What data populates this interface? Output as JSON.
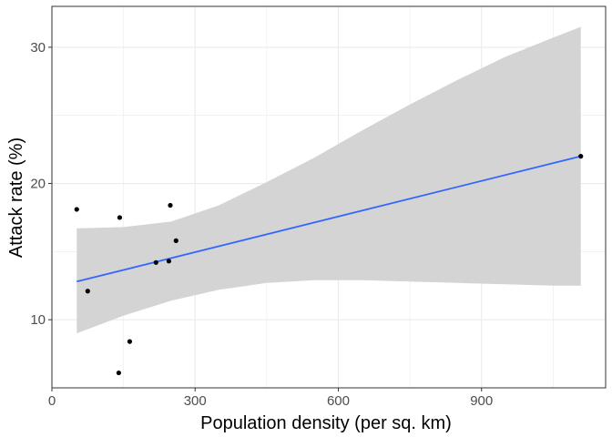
{
  "chart_data": {
    "type": "scatter",
    "xlabel": "Population density (per sq. km)",
    "ylabel": "Attack rate (%)",
    "xlim": [
      0,
      1160
    ],
    "ylim": [
      5,
      33
    ],
    "x_ticks": [
      0,
      300,
      600,
      900
    ],
    "y_ticks": [
      10,
      20,
      30
    ],
    "grid": true,
    "points": [
      {
        "x": 52,
        "y": 18.1
      },
      {
        "x": 75,
        "y": 12.1
      },
      {
        "x": 140,
        "y": 6.1
      },
      {
        "x": 142,
        "y": 17.5
      },
      {
        "x": 163,
        "y": 8.4
      },
      {
        "x": 218,
        "y": 14.2
      },
      {
        "x": 245,
        "y": 14.3
      },
      {
        "x": 248,
        "y": 18.4
      },
      {
        "x": 260,
        "y": 15.8
      },
      {
        "x": 1108,
        "y": 22.0
      }
    ],
    "fit_line": {
      "x": [
        52,
        1108
      ],
      "y": [
        12.8,
        22.0
      ]
    },
    "confidence_band": {
      "x": [
        52,
        150,
        250,
        350,
        450,
        550,
        650,
        750,
        850,
        950,
        1050,
        1108
      ],
      "lower": [
        9.0,
        10.3,
        11.4,
        12.2,
        12.7,
        12.9,
        12.9,
        12.8,
        12.7,
        12.6,
        12.5,
        12.5
      ],
      "upper": [
        16.7,
        16.8,
        17.2,
        18.4,
        20.1,
        21.9,
        23.9,
        25.8,
        27.6,
        29.3,
        30.7,
        31.5
      ]
    },
    "colors": {
      "points": "#000000",
      "line": "#3366FF",
      "band": "#d4d4d4",
      "grid": "#ebebeb",
      "panel_border": "#333333"
    }
  }
}
